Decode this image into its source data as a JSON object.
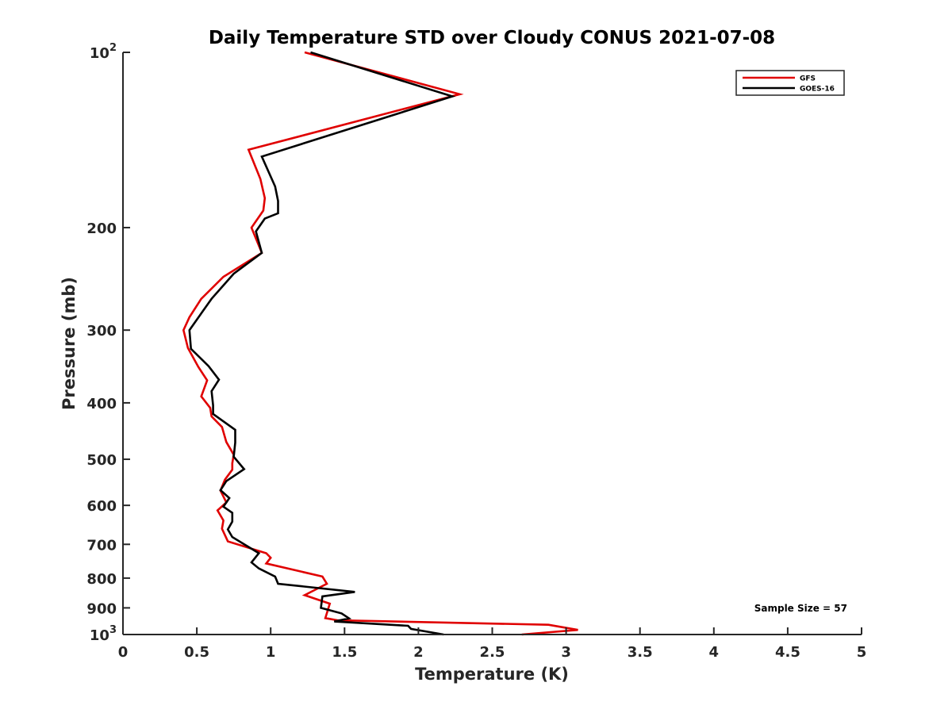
{
  "chart_data": {
    "type": "line",
    "title": "Daily Temperature STD over Cloudy CONUS 2021-07-08",
    "xlabel": "Temperature (K)",
    "ylabel": "Pressure (mb)",
    "xlim": [
      0,
      5
    ],
    "ylim": [
      100,
      1000
    ],
    "y_scale": "log",
    "y_reversed": true,
    "grid": false,
    "legend_position": "top-right",
    "x_ticks": [
      "0",
      "0.5",
      "1",
      "1.5",
      "2",
      "2.5",
      "3",
      "3.5",
      "4",
      "4.5",
      "5"
    ],
    "y_ticks": [
      {
        "value": 100,
        "label": "10",
        "sup": "2"
      },
      {
        "value": 200,
        "label": "200",
        "sup": ""
      },
      {
        "value": 300,
        "label": "300",
        "sup": ""
      },
      {
        "value": 400,
        "label": "400",
        "sup": ""
      },
      {
        "value": 500,
        "label": "500",
        "sup": ""
      },
      {
        "value": 600,
        "label": "600",
        "sup": ""
      },
      {
        "value": 700,
        "label": "700",
        "sup": ""
      },
      {
        "value": 800,
        "label": "800",
        "sup": ""
      },
      {
        "value": 900,
        "label": "900",
        "sup": ""
      },
      {
        "value": 1000,
        "label": "10",
        "sup": "3"
      }
    ],
    "series": [
      {
        "name": "GFS",
        "color": "#e00000",
        "points": [
          [
            1.23,
            100
          ],
          [
            2.28,
            118
          ],
          [
            0.85,
            147
          ],
          [
            0.93,
            165
          ],
          [
            0.96,
            178
          ],
          [
            0.95,
            187
          ],
          [
            0.87,
            200
          ],
          [
            0.94,
            221
          ],
          [
            0.68,
            243
          ],
          [
            0.53,
            265
          ],
          [
            0.45,
            285
          ],
          [
            0.41,
            300
          ],
          [
            0.44,
            322
          ],
          [
            0.51,
            347
          ],
          [
            0.57,
            366
          ],
          [
            0.53,
            390
          ],
          [
            0.59,
            408
          ],
          [
            0.6,
            422
          ],
          [
            0.67,
            440
          ],
          [
            0.7,
            467
          ],
          [
            0.75,
            491
          ],
          [
            0.74,
            508
          ],
          [
            0.74,
            521
          ],
          [
            0.69,
            542
          ],
          [
            0.66,
            566
          ],
          [
            0.7,
            593
          ],
          [
            0.64,
            612
          ],
          [
            0.68,
            637
          ],
          [
            0.67,
            658
          ],
          [
            0.71,
            692
          ],
          [
            0.97,
            725
          ],
          [
            1.0,
            738
          ],
          [
            0.97,
            755
          ],
          [
            1.35,
            795
          ],
          [
            1.38,
            818
          ],
          [
            1.23,
            856
          ],
          [
            1.4,
            885
          ],
          [
            1.37,
            937
          ],
          [
            1.45,
            945
          ],
          [
            2.88,
            962
          ],
          [
            3.08,
            982
          ],
          [
            2.7,
            1000
          ]
        ]
      },
      {
        "name": "GOES-16",
        "color": "#000000",
        "points": [
          [
            1.27,
            100
          ],
          [
            2.23,
            119
          ],
          [
            0.94,
            151
          ],
          [
            1.03,
            170
          ],
          [
            1.05,
            180
          ],
          [
            1.05,
            189
          ],
          [
            0.96,
            193
          ],
          [
            0.9,
            203
          ],
          [
            0.94,
            221
          ],
          [
            0.75,
            240
          ],
          [
            0.6,
            265
          ],
          [
            0.45,
            300
          ],
          [
            0.46,
            323
          ],
          [
            0.58,
            346
          ],
          [
            0.65,
            365
          ],
          [
            0.6,
            382
          ],
          [
            0.61,
            404
          ],
          [
            0.61,
            418
          ],
          [
            0.76,
            445
          ],
          [
            0.76,
            468
          ],
          [
            0.75,
            495
          ],
          [
            0.82,
            520
          ],
          [
            0.7,
            545
          ],
          [
            0.66,
            565
          ],
          [
            0.72,
            583
          ],
          [
            0.68,
            603
          ],
          [
            0.74,
            618
          ],
          [
            0.74,
            640
          ],
          [
            0.71,
            660
          ],
          [
            0.74,
            680
          ],
          [
            0.92,
            725
          ],
          [
            0.87,
            752
          ],
          [
            0.92,
            770
          ],
          [
            1.03,
            795
          ],
          [
            1.05,
            818
          ],
          [
            1.57,
            845
          ],
          [
            1.35,
            860
          ],
          [
            1.34,
            900
          ],
          [
            1.48,
            920
          ],
          [
            1.53,
            938
          ],
          [
            1.43,
            950
          ],
          [
            1.93,
            966
          ],
          [
            1.95,
            978
          ],
          [
            2.17,
            1000
          ]
        ]
      }
    ],
    "annotations": [
      {
        "text": "Sample Size = 57"
      }
    ]
  }
}
